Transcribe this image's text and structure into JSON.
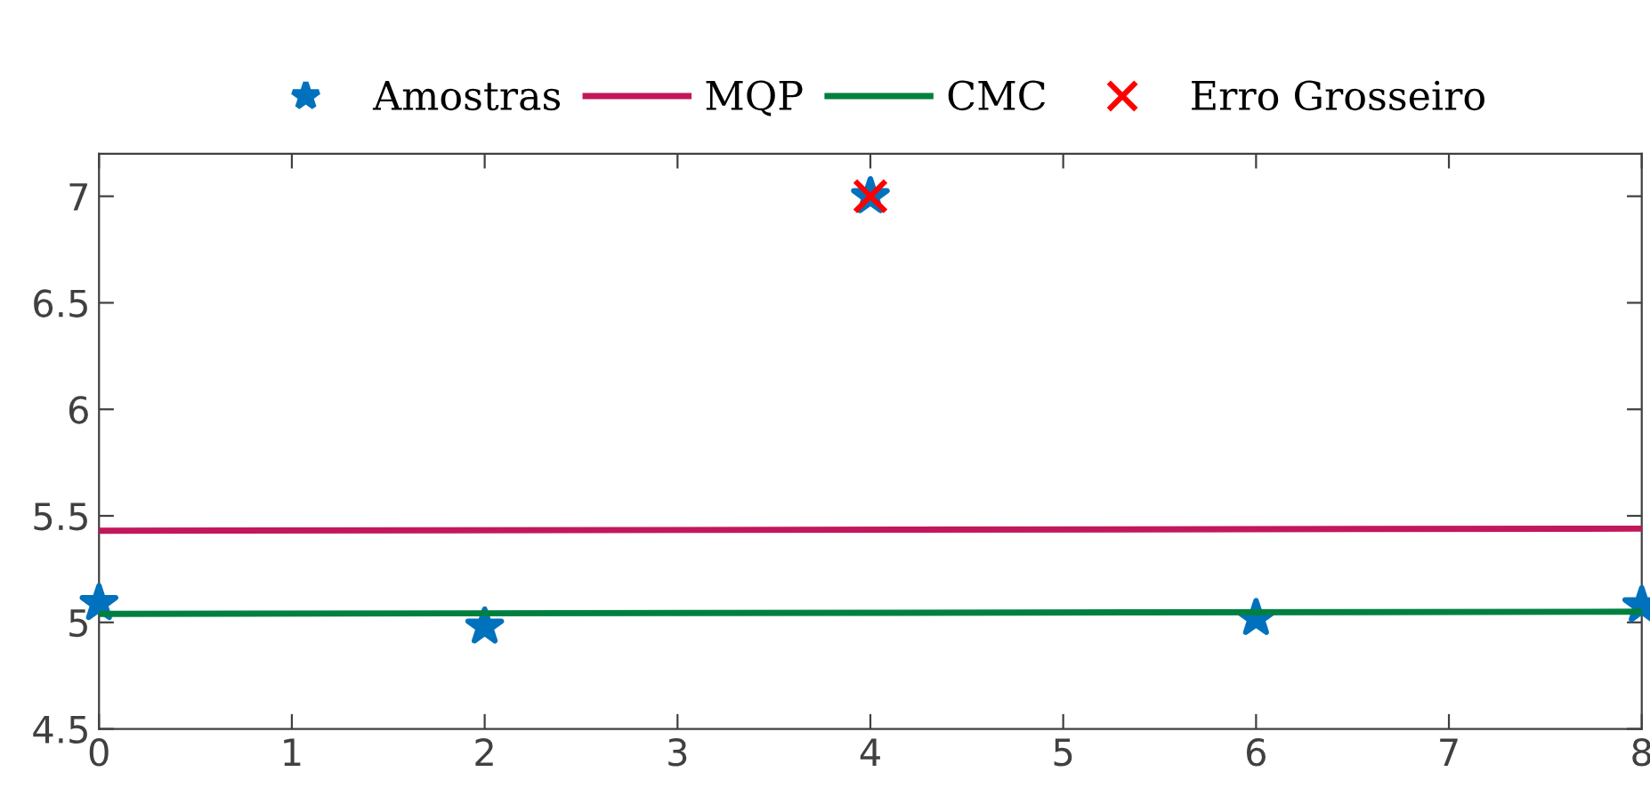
{
  "chart_data": {
    "type": "scatter",
    "xlim": [
      0,
      8
    ],
    "ylim": [
      4.5,
      7.2
    ],
    "xticks": [
      0,
      1,
      2,
      3,
      4,
      5,
      6,
      7,
      8
    ],
    "yticks": [
      4.5,
      5,
      {
        "value": 5.5,
        "label": "5.5"
      },
      6,
      {
        "value": 6.5,
        "label": "6.5"
      },
      7
    ],
    "grid": false,
    "legend": "top",
    "series": [
      {
        "name": "Amostras",
        "type": "scatter",
        "marker": "star",
        "color": "#0072bd",
        "x": [
          0,
          2,
          4,
          6,
          8
        ],
        "values": [
          5.09,
          4.98,
          7,
          5.02,
          5.08
        ]
      },
      {
        "name": "MQP",
        "type": "line",
        "color": "#c2185b",
        "x": [
          0,
          8
        ],
        "values": [
          5.43,
          5.44
        ]
      },
      {
        "name": "CMC",
        "type": "line",
        "color": "#008040",
        "x": [
          0,
          8
        ],
        "values": [
          5.04,
          5.05
        ]
      },
      {
        "name": "Erro Grosseiro",
        "type": "scatter",
        "marker": "cross",
        "color": "#ff0000",
        "x": [
          4
        ],
        "values": [
          7
        ]
      }
    ]
  }
}
